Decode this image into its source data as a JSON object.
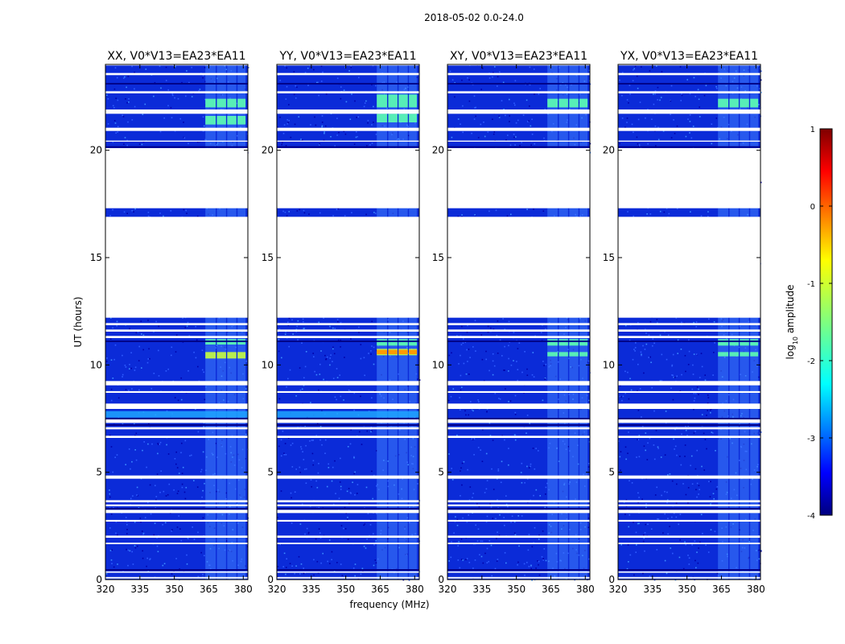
{
  "figure": {
    "suptitle": "2018-05-02 0.0-24.0"
  },
  "chart_data": {
    "type": "heatmap",
    "xlabel": "frequency (MHz)",
    "ylabel": "UT (hours)",
    "xlim": [
      320,
      382
    ],
    "ylim": [
      0,
      24
    ],
    "x_ticks": [
      320,
      335,
      350,
      365,
      380
    ],
    "y_ticks": [
      0,
      5,
      10,
      15,
      20
    ],
    "panels": [
      {
        "title": "XX, V0*V13=EA23*EA11",
        "polarization": "XX",
        "hot": [
          [
            10.3,
            10.6
          ],
          [
            10.95,
            11.2
          ],
          [
            22.0,
            22.4
          ],
          [
            21.2,
            21.6
          ]
        ]
      },
      {
        "title": "YY, V0*V13=EA23*EA11",
        "polarization": "YY",
        "hot": [
          [
            10.45,
            10.75
          ],
          [
            10.9,
            11.2
          ],
          [
            22.0,
            22.6
          ],
          [
            21.3,
            21.7
          ]
        ]
      },
      {
        "title": "XY, V0*V13=EA23*EA11",
        "polarization": "XY",
        "hot": [
          [
            10.9,
            11.2
          ],
          [
            10.4,
            10.6
          ],
          [
            22.0,
            22.4
          ]
        ]
      },
      {
        "title": "YX, V0*V13=EA23*EA11",
        "polarization": "YX",
        "hot": [
          [
            10.9,
            11.2
          ],
          [
            10.4,
            10.6
          ],
          [
            22.0,
            22.4
          ]
        ]
      }
    ],
    "flagged_hours": [
      [
        0.05,
        0.12
      ],
      [
        0.32,
        0.38
      ],
      [
        1.65,
        1.72
      ],
      [
        1.95,
        2.05
      ],
      [
        2.7,
        2.78
      ],
      [
        3.1,
        3.25
      ],
      [
        3.42,
        3.5
      ],
      [
        3.6,
        3.7
      ],
      [
        4.7,
        4.85
      ],
      [
        6.6,
        6.7
      ],
      [
        7.0,
        7.1
      ],
      [
        7.3,
        7.5
      ],
      [
        7.95,
        8.2
      ],
      [
        8.7,
        8.78
      ],
      [
        9.05,
        9.25
      ],
      [
        11.25,
        11.35
      ],
      [
        11.55,
        11.65
      ],
      [
        11.85,
        11.95
      ],
      [
        12.2,
        16.9
      ],
      [
        17.3,
        20.1
      ],
      [
        20.4,
        20.45
      ],
      [
        20.9,
        21.05
      ],
      [
        21.7,
        21.9
      ],
      [
        22.65,
        22.75
      ],
      [
        23.5,
        23.6
      ],
      [
        23.95,
        24.0
      ]
    ],
    "band_segments": [
      [
        363.5,
        368
      ],
      [
        368.5,
        372.5
      ],
      [
        373,
        377
      ],
      [
        377.5,
        381
      ]
    ],
    "colorbar": {
      "label": "log10 amplitude",
      "label_main": "log",
      "label_sub": "10",
      "label_tail": " amplitude",
      "min": -4,
      "max": 1,
      "ticks": [
        -4,
        -3,
        -2,
        -1,
        0,
        1
      ],
      "colormap": "jet"
    }
  }
}
